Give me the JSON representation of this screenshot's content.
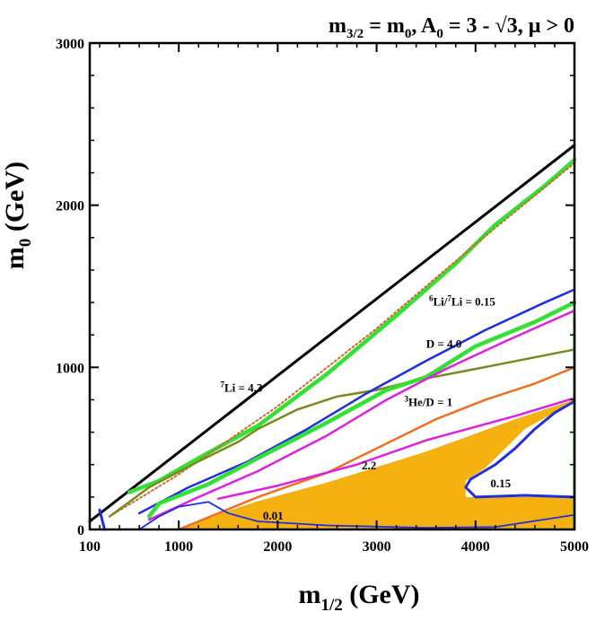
{
  "chart_data": {
    "type": "line",
    "title": "m3/2 = m0, A0 = 3 - √3, μ > 0",
    "title_parts": {
      "base": "m",
      "sub1": "3/2",
      "eq": " = m",
      "sub2": "0",
      "mid": ", A",
      "sub3": "0",
      "rest": " = 3 - √3,  μ > 0"
    },
    "xlabel": "m1/2 (GeV)",
    "xlabel_parts": {
      "base": "m",
      "sub": "1/2",
      "rest": " (GeV)"
    },
    "ylabel": "m0 (GeV)",
    "ylabel_parts": {
      "base": "m",
      "sub": "0",
      "rest": " (GeV)"
    },
    "xlim": [
      100,
      5000
    ],
    "ylim": [
      0,
      3000
    ],
    "x_ticks": [
      100,
      1000,
      2000,
      3000,
      4000,
      5000
    ],
    "y_ticks": [
      0,
      1000,
      2000,
      3000
    ],
    "x_minor_step": 200,
    "y_minor_step": 200,
    "shaded_region": {
      "name": "excluded-region",
      "color": "#f5b10f",
      "points": [
        [
          1000,
          0
        ],
        [
          5000,
          0
        ],
        [
          5000,
          200
        ],
        [
          3900,
          200
        ],
        [
          3900,
          300
        ],
        [
          4100,
          380
        ],
        [
          4500,
          620
        ],
        [
          5000,
          790
        ],
        [
          5000,
          800
        ],
        [
          4400,
          680
        ],
        [
          3500,
          480
        ],
        [
          2500,
          290
        ],
        [
          1800,
          175
        ],
        [
          1200,
          55
        ],
        [
          1000,
          0
        ]
      ]
    },
    "series": [
      {
        "name": "boundary-diagonal",
        "color": "#000000",
        "width": 3,
        "points": [
          [
            100,
            50
          ],
          [
            5000,
            2370
          ]
        ]
      },
      {
        "name": "green-upper",
        "color": "#33e033",
        "width": 4.5,
        "points": [
          [
            500,
            230
          ],
          [
            800,
            300
          ],
          [
            1200,
            440
          ],
          [
            1800,
            640
          ],
          [
            2500,
            960
          ],
          [
            3200,
            1320
          ],
          [
            3800,
            1640
          ],
          [
            4200,
            1880
          ],
          [
            4700,
            2120
          ],
          [
            5000,
            2280
          ]
        ]
      },
      {
        "name": "dotted-brown",
        "color": "#d06a2a",
        "width": 2,
        "dash": "2 3",
        "points": [
          [
            300,
            80
          ],
          [
            1000,
            340
          ],
          [
            2000,
            760
          ],
          [
            3000,
            1240
          ],
          [
            4000,
            1760
          ],
          [
            5000,
            2260
          ]
        ]
      },
      {
        "name": "olive-upper",
        "color": "#7a8a1e",
        "width": 2.5,
        "points": [
          [
            300,
            80
          ],
          [
            700,
            260
          ],
          [
            1200,
            420
          ],
          [
            1600,
            540
          ],
          [
            1800,
            620
          ],
          [
            2200,
            740
          ],
          [
            2600,
            820
          ],
          [
            3000,
            860
          ],
          [
            3400,
            920
          ],
          [
            4000,
            990
          ],
          [
            4500,
            1050
          ],
          [
            5000,
            1110
          ]
        ]
      },
      {
        "name": "li6-li7-blue",
        "color": "#1e2ee0",
        "width": 2.5,
        "points": [
          [
            600,
            100
          ],
          [
            1100,
            260
          ],
          [
            1700,
            420
          ],
          [
            2300,
            620
          ],
          [
            2900,
            840
          ],
          [
            3500,
            1040
          ],
          [
            4100,
            1230
          ],
          [
            4700,
            1400
          ],
          [
            5000,
            1480
          ]
        ]
      },
      {
        "name": "green-lower",
        "color": "#33e033",
        "width": 4.5,
        "points": [
          [
            700,
            80
          ],
          [
            800,
            160
          ],
          [
            1300,
            280
          ],
          [
            1800,
            440
          ],
          [
            2500,
            660
          ],
          [
            3100,
            860
          ],
          [
            3500,
            940
          ],
          [
            4000,
            1130
          ],
          [
            4600,
            1280
          ],
          [
            5000,
            1400
          ]
        ]
      },
      {
        "name": "magenta-d",
        "color": "#e020e0",
        "width": 2.5,
        "points": [
          [
            700,
            60
          ],
          [
            1200,
            200
          ],
          [
            1800,
            360
          ],
          [
            2500,
            580
          ],
          [
            3100,
            800
          ],
          [
            3700,
            990
          ],
          [
            4300,
            1160
          ],
          [
            5000,
            1350
          ]
        ]
      },
      {
        "name": "orange-he3",
        "color": "#f07020",
        "width": 2.5,
        "points": [
          [
            1000,
            0
          ],
          [
            1800,
            200
          ],
          [
            2500,
            350
          ],
          [
            3100,
            530
          ],
          [
            3600,
            680
          ],
          [
            4100,
            800
          ],
          [
            4600,
            900
          ],
          [
            5000,
            1000
          ]
        ]
      },
      {
        "name": "magenta-2-2",
        "color": "#e020e0",
        "width": 2.5,
        "points": [
          [
            1400,
            190
          ],
          [
            2000,
            270
          ],
          [
            2800,
            400
          ],
          [
            3500,
            550
          ],
          [
            4400,
            700
          ],
          [
            5000,
            810
          ]
        ]
      },
      {
        "name": "blue-0-15",
        "color": "#1e2ee0",
        "width": 3,
        "points": [
          [
            5000,
            200
          ],
          [
            4500,
            210
          ],
          [
            4000,
            200
          ],
          [
            3900,
            260
          ],
          [
            3950,
            310
          ],
          [
            4200,
            400
          ],
          [
            4400,
            500
          ],
          [
            4600,
            620
          ],
          [
            4800,
            720
          ],
          [
            5000,
            790
          ]
        ]
      },
      {
        "name": "blue-0-01",
        "color": "#1e2ee0",
        "width": 1.8,
        "points": [
          [
            600,
            0
          ],
          [
            800,
            80
          ],
          [
            1000,
            140
          ],
          [
            1300,
            170
          ],
          [
            1500,
            100
          ],
          [
            1800,
            50
          ],
          [
            2500,
            25
          ],
          [
            3500,
            10
          ],
          [
            4200,
            15
          ],
          [
            5000,
            90
          ]
        ]
      },
      {
        "name": "blue-small-spur",
        "color": "#1e2ee0",
        "width": 3,
        "points": [
          [
            200,
            120
          ],
          [
            250,
            0
          ]
        ]
      },
      {
        "name": "right-green-edge",
        "color": "#33e033",
        "width": 3,
        "points": [
          [
            5000,
            0
          ],
          [
            5000,
            1300
          ]
        ]
      }
    ],
    "annotations": [
      {
        "name": "li7-label",
        "x": 1420,
        "y": 850,
        "sup": "7",
        "text": "Li = 4.3"
      },
      {
        "name": "li6-li7-label",
        "x": 3530,
        "y": 1380,
        "sup": "6",
        "text": "Li/",
        "sup2": "7",
        "text2": "Li = 0.15"
      },
      {
        "name": "d-label",
        "x": 3500,
        "y": 1120,
        "text": "D = 4.0"
      },
      {
        "name": "he3-d-label",
        "x": 3280,
        "y": 760,
        "sup": "3",
        "text": "He/D = 1"
      },
      {
        "name": "label-2-2",
        "x": 2850,
        "y": 370,
        "text": "2.2"
      },
      {
        "name": "label-0-15",
        "x": 4150,
        "y": 260,
        "text": "0.15"
      },
      {
        "name": "label-0-01",
        "x": 1850,
        "y": 60,
        "text": "0.01"
      }
    ]
  }
}
